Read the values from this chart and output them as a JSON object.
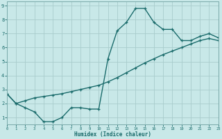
{
  "line1_x": [
    0,
    1,
    2,
    3,
    4,
    5,
    6,
    7,
    8,
    9,
    10,
    11,
    12,
    13,
    14,
    15,
    16,
    17,
    18,
    19,
    20,
    21,
    22,
    23
  ],
  "line1_y": [
    2.7,
    2.0,
    1.7,
    1.4,
    0.7,
    0.7,
    1.0,
    1.7,
    1.7,
    1.6,
    1.6,
    5.2,
    7.2,
    7.8,
    8.8,
    8.8,
    7.8,
    7.3,
    7.3,
    6.5,
    6.5,
    6.8,
    7.0,
    6.7
  ],
  "line2_x": [
    0,
    1,
    2,
    3,
    4,
    5,
    6,
    7,
    8,
    9,
    10,
    11,
    12,
    13,
    14,
    15,
    16,
    17,
    18,
    19,
    20,
    21,
    22,
    23
  ],
  "line2_y": [
    2.7,
    2.0,
    2.2,
    2.4,
    2.5,
    2.6,
    2.7,
    2.85,
    3.0,
    3.15,
    3.3,
    3.55,
    3.85,
    4.2,
    4.55,
    4.9,
    5.2,
    5.5,
    5.75,
    6.0,
    6.25,
    6.5,
    6.65,
    6.5
  ],
  "line_color": "#1a6b6b",
  "bg_color": "#c8e8e8",
  "grid_color": "#a8cccc",
  "xlabel": "Humidex (Indice chaleur)",
  "xlim": [
    0,
    23
  ],
  "ylim": [
    0.5,
    9.3
  ],
  "xticks": [
    0,
    1,
    2,
    3,
    4,
    5,
    6,
    7,
    8,
    9,
    10,
    11,
    12,
    13,
    14,
    15,
    16,
    17,
    18,
    19,
    20,
    21,
    22,
    23
  ],
  "yticks": [
    1,
    2,
    3,
    4,
    5,
    6,
    7,
    8,
    9
  ],
  "marker": "+",
  "markersize": 3.5,
  "linewidth": 1.0
}
